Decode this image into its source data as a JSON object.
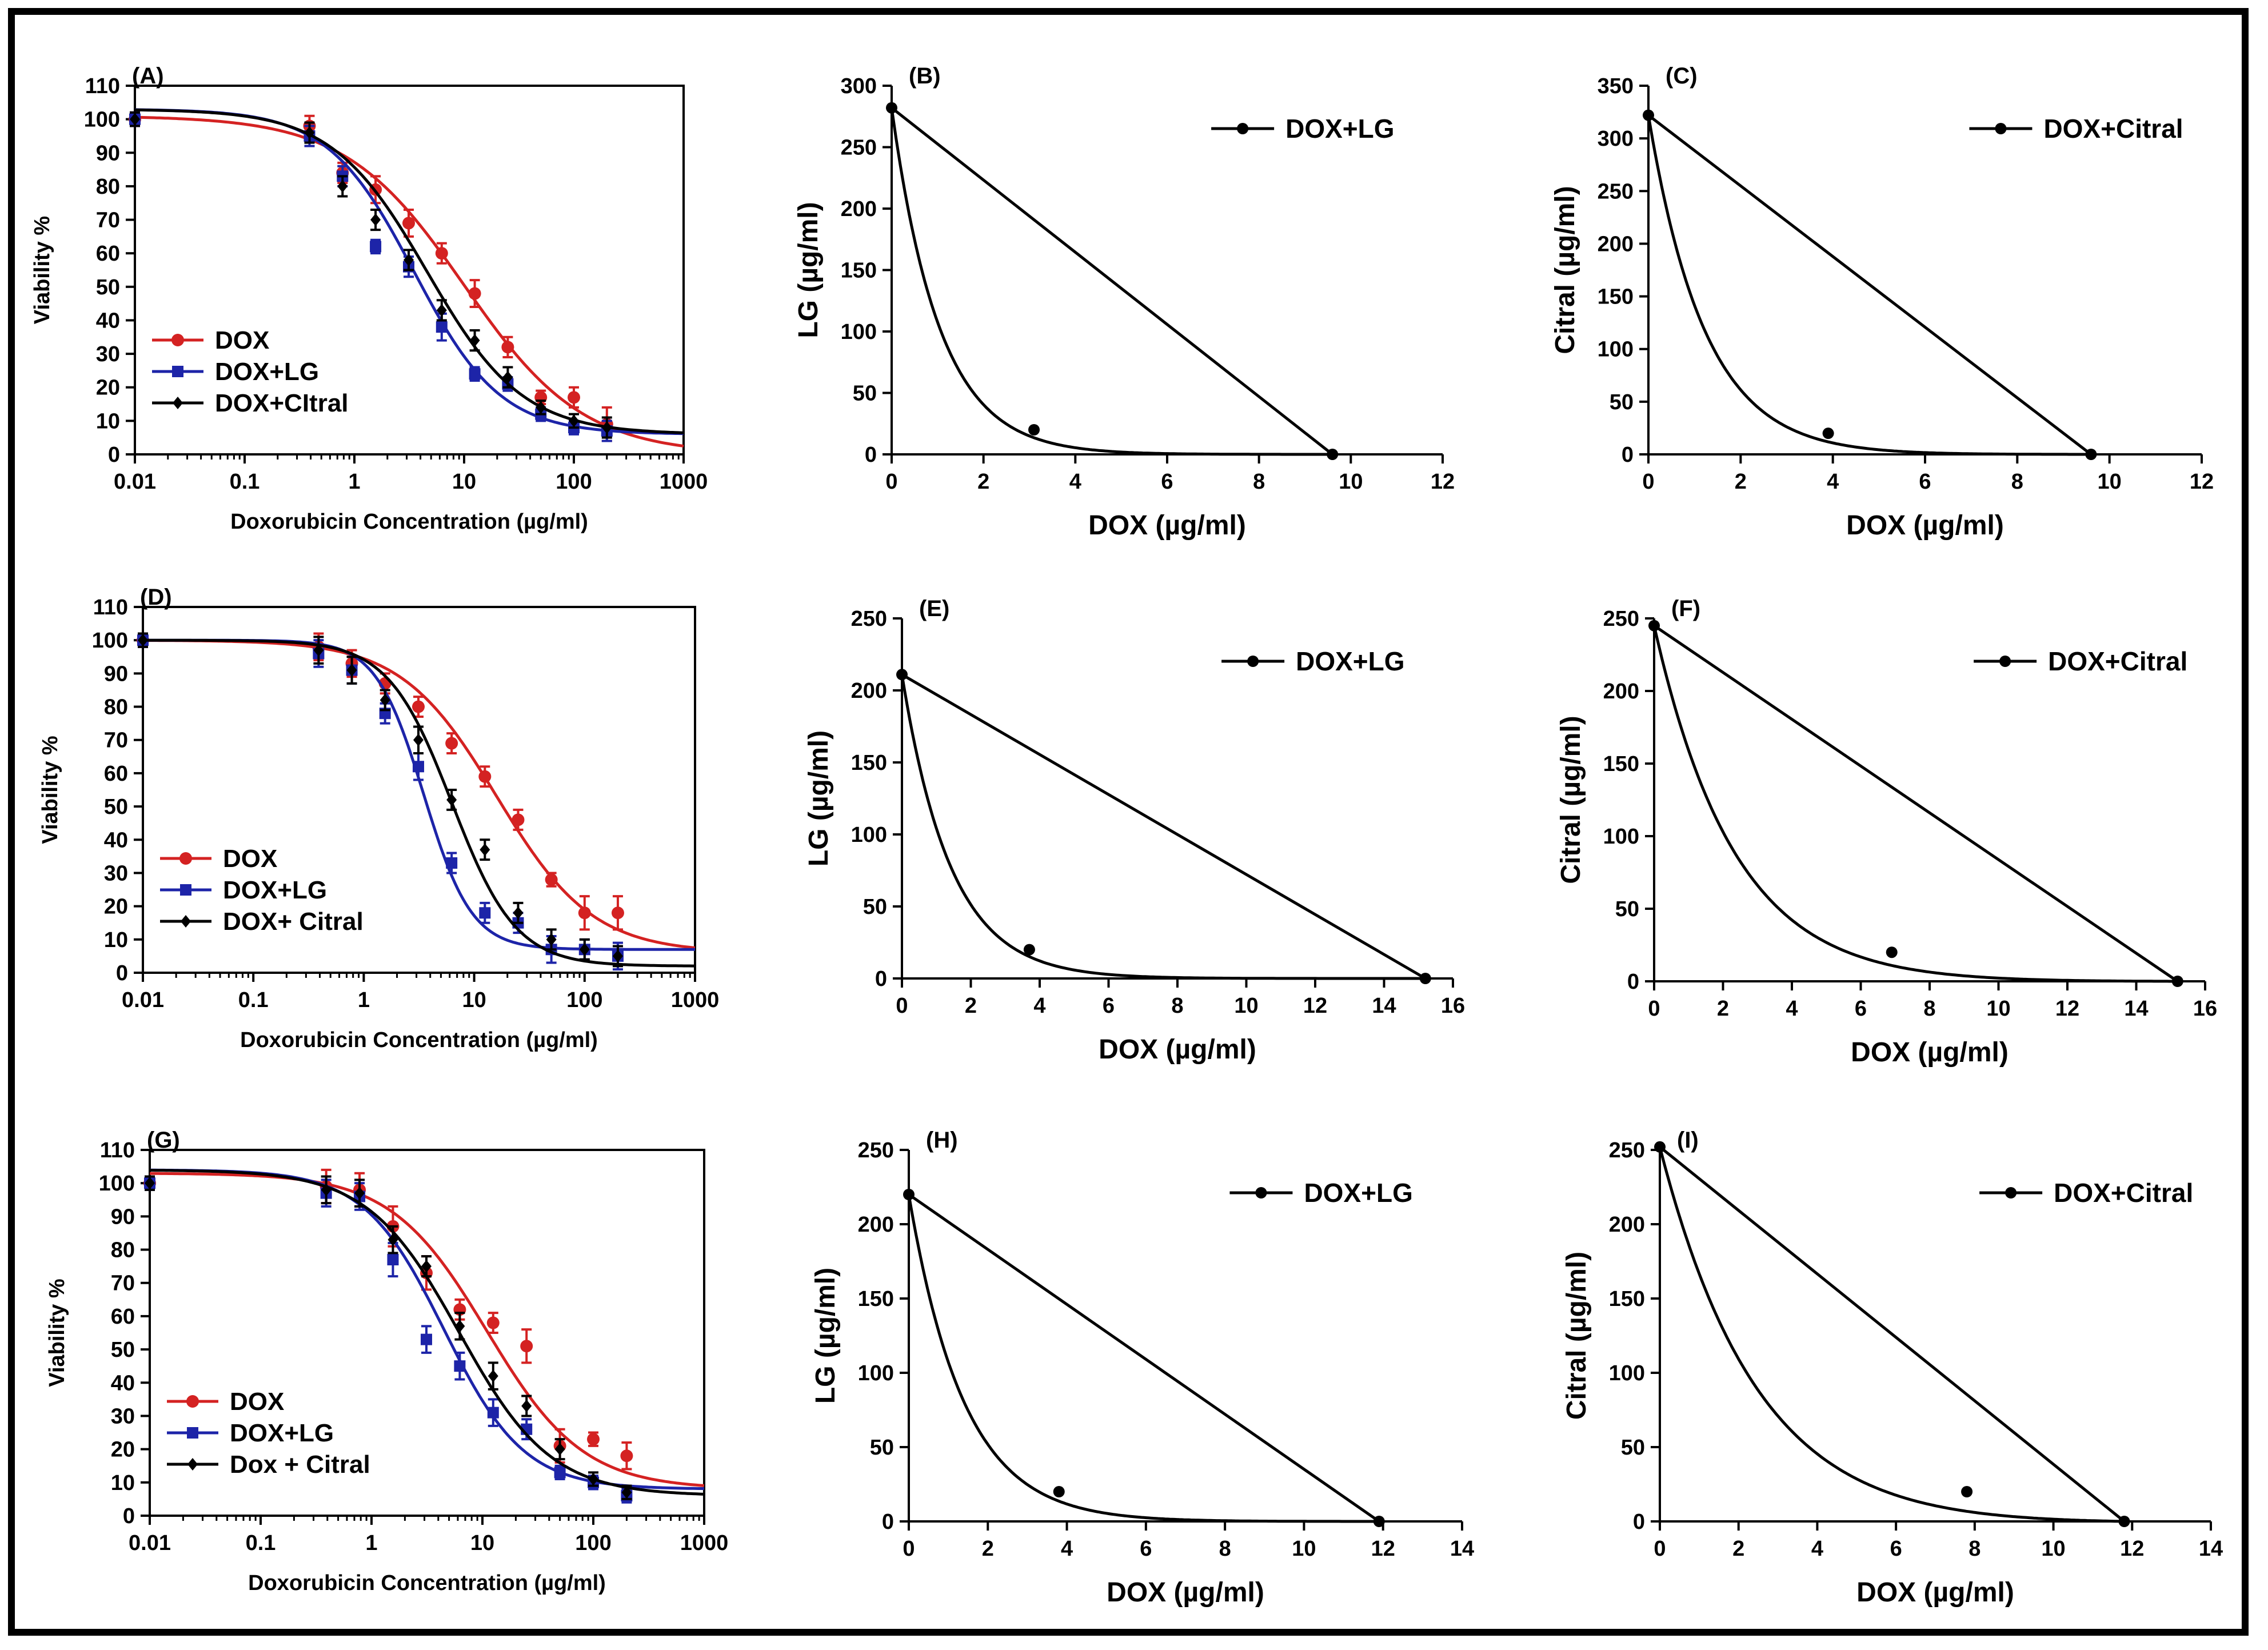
{
  "colors": {
    "dox": "#d42222",
    "dox_lg": "#1d24a8",
    "dox_citral": "#000000",
    "axis": "#000000",
    "iso": "#000000"
  },
  "chart_data": [
    {
      "panel": "(A)",
      "type": "line",
      "xscale": "log",
      "xlabel": "Doxorubicin Concentration (µg/ml)",
      "ylabel": "Viability %",
      "xlim": [
        0.01,
        1000
      ],
      "ylim": [
        0,
        110
      ],
      "xticks": [
        0.01,
        0.1,
        1,
        10,
        100,
        1000
      ],
      "xticklabels": [
        "0.01",
        "0.1",
        "1",
        "10",
        "100",
        "1000"
      ],
      "yticks": [
        0,
        10,
        20,
        30,
        40,
        50,
        60,
        70,
        80,
        90,
        100,
        110
      ],
      "yticklabels": [
        "0",
        "10",
        "20",
        "30",
        "40",
        "50",
        "60",
        "70",
        "80",
        "90",
        "100",
        "110"
      ],
      "legend_position": "bottom-left",
      "series": [
        {
          "name": "DOX",
          "color_key": "dox",
          "marker": "circle",
          "x": [
            0.01,
            0.39,
            0.78,
            1.56,
            3.125,
            6.25,
            12.5,
            25,
            50,
            100,
            200
          ],
          "y": [
            100,
            98,
            84,
            79,
            69,
            60,
            48,
            32,
            17,
            17,
            9
          ],
          "err": [
            2,
            3,
            3,
            4,
            4,
            3,
            4,
            3,
            2,
            3,
            5
          ],
          "fit": {
            "top": 101,
            "bottom": 0,
            "ec50": 10,
            "hill": 0.8
          }
        },
        {
          "name": "DOX+LG",
          "color_key": "dox_lg",
          "marker": "square",
          "x": [
            0.01,
            0.39,
            0.78,
            1.56,
            3.125,
            6.25,
            12.5,
            25,
            50,
            100,
            200
          ],
          "y": [
            100,
            95,
            83,
            62,
            56,
            38,
            24,
            21,
            12,
            8,
            7
          ],
          "err": [
            2,
            3,
            3,
            2,
            3,
            4,
            2,
            2,
            2,
            2,
            3
          ],
          "fit": {
            "top": 103,
            "bottom": 6,
            "ec50": 3.5,
            "hill": 1.1
          }
        },
        {
          "name": "DOX+CItral",
          "color_key": "dox_citral",
          "marker": "diamond",
          "x": [
            0.01,
            0.39,
            0.78,
            1.56,
            3.125,
            6.25,
            12.5,
            25,
            50,
            100,
            200
          ],
          "y": [
            100,
            96,
            80,
            70,
            58,
            43,
            34,
            23,
            14,
            10,
            8
          ],
          "err": [
            2,
            3,
            3,
            3,
            3,
            3,
            3,
            3,
            2,
            2,
            3
          ],
          "fit": {
            "top": 103,
            "bottom": 6,
            "ec50": 4.6,
            "hill": 1.0
          }
        }
      ]
    },
    {
      "panel": "(B)",
      "type": "line",
      "subtype": "isobologram",
      "xlabel": "DOX (µg/ml)",
      "ylabel": "LG (µg/ml)",
      "xlim": [
        0,
        12
      ],
      "ylim": [
        0,
        300
      ],
      "xticks": [
        0,
        2,
        4,
        6,
        8,
        10,
        12
      ],
      "yticks": [
        0,
        50,
        100,
        150,
        200,
        250,
        300
      ],
      "legend_position": "top-right",
      "legend": "DOX+LG",
      "additive_line": {
        "x": [
          0,
          9.6
        ],
        "y": [
          282,
          0
        ]
      },
      "combination_point": {
        "x": 3.1,
        "y": 20
      }
    },
    {
      "panel": "(C)",
      "type": "line",
      "subtype": "isobologram",
      "xlabel": "DOX (µg/ml)",
      "ylabel": "Citral (µg/ml)",
      "xlim": [
        0,
        12
      ],
      "ylim": [
        0,
        350
      ],
      "xticks": [
        0,
        2,
        4,
        6,
        8,
        10,
        12
      ],
      "yticks": [
        0,
        50,
        100,
        150,
        200,
        250,
        300,
        350
      ],
      "legend_position": "top-right",
      "legend": "DOX+Citral",
      "additive_line": {
        "x": [
          0,
          9.6
        ],
        "y": [
          322,
          0
        ]
      },
      "combination_point": {
        "x": 3.9,
        "y": 20
      }
    },
    {
      "panel": "(D)",
      "type": "line",
      "xscale": "log",
      "xlabel": "Doxorubicin Concentration (µg/ml)",
      "ylabel": "Viability %",
      "xlim": [
        0.01,
        1000
      ],
      "ylim": [
        0,
        110
      ],
      "xticks": [
        0.01,
        0.1,
        1,
        10,
        100,
        1000
      ],
      "xticklabels": [
        "0.01",
        "0.1",
        "1",
        "10",
        "100",
        "1000"
      ],
      "yticks": [
        0,
        10,
        20,
        30,
        40,
        50,
        60,
        70,
        80,
        90,
        100,
        110
      ],
      "yticklabels": [
        "0",
        "10",
        "20",
        "30",
        "40",
        "50",
        "60",
        "70",
        "80",
        "90",
        "100",
        "110"
      ],
      "legend_position": "bottom-left",
      "series": [
        {
          "name": "DOX",
          "color_key": "dox",
          "marker": "circle",
          "x": [
            0.01,
            0.39,
            0.78,
            1.56,
            3.125,
            6.25,
            12.5,
            25,
            50,
            100,
            200
          ],
          "y": [
            100,
            98,
            93,
            87,
            80,
            69,
            59,
            46,
            28,
            18,
            18
          ],
          "err": [
            2,
            4,
            4,
            3,
            3,
            3,
            3,
            3,
            2,
            5,
            5
          ],
          "fit": {
            "top": 100,
            "bottom": 6,
            "ec50": 16,
            "hill": 1.0
          }
        },
        {
          "name": "DOX+LG",
          "color_key": "dox_lg",
          "marker": "square",
          "x": [
            0.01,
            0.39,
            0.78,
            1.56,
            3.125,
            6.25,
            12.5,
            25,
            50,
            100,
            200
          ],
          "y": [
            100,
            96,
            91,
            78,
            62,
            33,
            18,
            15,
            7,
            7,
            5
          ],
          "err": [
            2,
            4,
            4,
            3,
            4,
            3,
            3,
            3,
            4,
            3,
            4
          ],
          "fit": {
            "top": 100,
            "bottom": 7,
            "ec50": 3.5,
            "hill": 2.0
          }
        },
        {
          "name": "DOX+ Citral",
          "color_key": "dox_citral",
          "marker": "diamond",
          "x": [
            0.01,
            0.39,
            0.78,
            1.56,
            3.125,
            6.25,
            12.5,
            25,
            50,
            100,
            200
          ],
          "y": [
            100,
            97,
            91,
            82,
            70,
            52,
            37,
            18,
            10,
            7,
            5
          ],
          "err": [
            2,
            4,
            4,
            3,
            4,
            3,
            3,
            3,
            3,
            3,
            3
          ],
          "fit": {
            "top": 100,
            "bottom": 2,
            "ec50": 6.3,
            "hill": 1.5
          }
        }
      ]
    },
    {
      "panel": "(E)",
      "type": "line",
      "subtype": "isobologram",
      "xlabel": "DOX (µg/ml)",
      "ylabel": "LG (µg/ml)",
      "xlim": [
        0,
        16
      ],
      "ylim": [
        0,
        250
      ],
      "xticks": [
        0,
        2,
        4,
        6,
        8,
        10,
        12,
        14,
        16
      ],
      "yticks": [
        0,
        50,
        100,
        150,
        200,
        250
      ],
      "legend_position": "top-right",
      "legend": "DOX+LG",
      "additive_line": {
        "x": [
          0,
          15.2
        ],
        "y": [
          211,
          0
        ]
      },
      "combination_point": {
        "x": 3.7,
        "y": 20
      }
    },
    {
      "panel": "(F)",
      "type": "line",
      "subtype": "isobologram",
      "xlabel": "DOX (µg/ml)",
      "ylabel": "Citral (µg/ml)",
      "xlim": [
        0,
        16
      ],
      "ylim": [
        0,
        250
      ],
      "xticks": [
        0,
        2,
        4,
        6,
        8,
        10,
        12,
        14,
        16
      ],
      "yticks": [
        0,
        50,
        100,
        150,
        200,
        250
      ],
      "legend_position": "top-right",
      "legend": "DOX+Citral",
      "additive_line": {
        "x": [
          0,
          15.2
        ],
        "y": [
          245,
          0
        ]
      },
      "combination_point": {
        "x": 6.9,
        "y": 20
      }
    },
    {
      "panel": "(G)",
      "type": "line",
      "xscale": "log",
      "xlabel": "Doxorubicin Concentration (µg/ml)",
      "ylabel": "Viability %",
      "xlim": [
        0.01,
        1000
      ],
      "ylim": [
        0,
        110
      ],
      "xticks": [
        0.01,
        0.1,
        1,
        10,
        100,
        1000
      ],
      "xticklabels": [
        "0.01",
        "0.1",
        "1",
        "10",
        "100",
        "1000"
      ],
      "yticks": [
        0,
        10,
        20,
        30,
        40,
        50,
        60,
        70,
        80,
        90,
        100,
        110
      ],
      "yticklabels": [
        "0",
        "10",
        "20",
        "30",
        "40",
        "50",
        "60",
        "70",
        "80",
        "90",
        "100",
        "110"
      ],
      "legend_position": "bottom-left",
      "series": [
        {
          "name": "DOX",
          "color_key": "dox",
          "marker": "circle",
          "x": [
            0.01,
            0.39,
            0.78,
            1.56,
            3.125,
            6.25,
            12.5,
            25,
            50,
            100,
            200
          ],
          "y": [
            100,
            99,
            98,
            87,
            73,
            62,
            58,
            51,
            21,
            23,
            18
          ],
          "err": [
            2,
            5,
            5,
            6,
            5,
            3,
            3,
            5,
            5,
            2,
            4
          ],
          "fit": {
            "top": 103,
            "bottom": 8,
            "ec50": 11,
            "hill": 1.0
          }
        },
        {
          "name": "DOX+LG",
          "color_key": "dox_lg",
          "marker": "square",
          "x": [
            0.01,
            0.39,
            0.78,
            1.56,
            3.125,
            6.25,
            12.5,
            25,
            50,
            100,
            200
          ],
          "y": [
            100,
            97,
            96,
            77,
            53,
            45,
            31,
            26,
            13,
            10,
            6
          ],
          "err": [
            2,
            4,
            4,
            5,
            4,
            4,
            4,
            3,
            2,
            2,
            2
          ],
          "fit": {
            "top": 104,
            "bottom": 8,
            "ec50": 4.5,
            "hill": 1.2
          }
        },
        {
          "name": "Dox + Citral",
          "color_key": "dox_citral",
          "marker": "diamond",
          "x": [
            0.01,
            0.39,
            0.78,
            1.56,
            3.125,
            6.25,
            12.5,
            25,
            50,
            100,
            200
          ],
          "y": [
            100,
            98,
            97,
            83,
            75,
            57,
            42,
            33,
            20,
            11,
            7
          ],
          "err": [
            2,
            4,
            4,
            4,
            3,
            4,
            4,
            3,
            3,
            2,
            2
          ],
          "fit": {
            "top": 104,
            "bottom": 6,
            "ec50": 6.2,
            "hill": 1.05
          }
        }
      ]
    },
    {
      "panel": "(H)",
      "type": "line",
      "subtype": "isobologram",
      "xlabel": "DOX (µg/ml)",
      "ylabel": "LG (µg/ml)",
      "xlim": [
        0,
        14
      ],
      "ylim": [
        0,
        250
      ],
      "xticks": [
        0,
        2,
        4,
        6,
        8,
        10,
        12,
        14
      ],
      "yticks": [
        0,
        50,
        100,
        150,
        200,
        250
      ],
      "legend_position": "top-right",
      "legend": "DOX+LG",
      "additive_line": {
        "x": [
          0,
          11.9
        ],
        "y": [
          220,
          0
        ]
      },
      "combination_point": {
        "x": 3.8,
        "y": 20
      }
    },
    {
      "panel": "(I)",
      "type": "line",
      "subtype": "isobologram",
      "xlabel": "DOX (µg/ml)",
      "ylabel": "Citral (µg/ml)",
      "xlim": [
        0,
        14
      ],
      "ylim": [
        0,
        250
      ],
      "xticks": [
        0,
        2,
        4,
        6,
        8,
        10,
        12,
        14
      ],
      "yticks": [
        0,
        50,
        100,
        150,
        200,
        250
      ],
      "legend_position": "top-right",
      "legend": "DOX+Citral",
      "additive_line": {
        "x": [
          0,
          11.8
        ],
        "y": [
          252,
          0
        ]
      },
      "combination_point": {
        "x": 7.8,
        "y": 20
      }
    }
  ]
}
